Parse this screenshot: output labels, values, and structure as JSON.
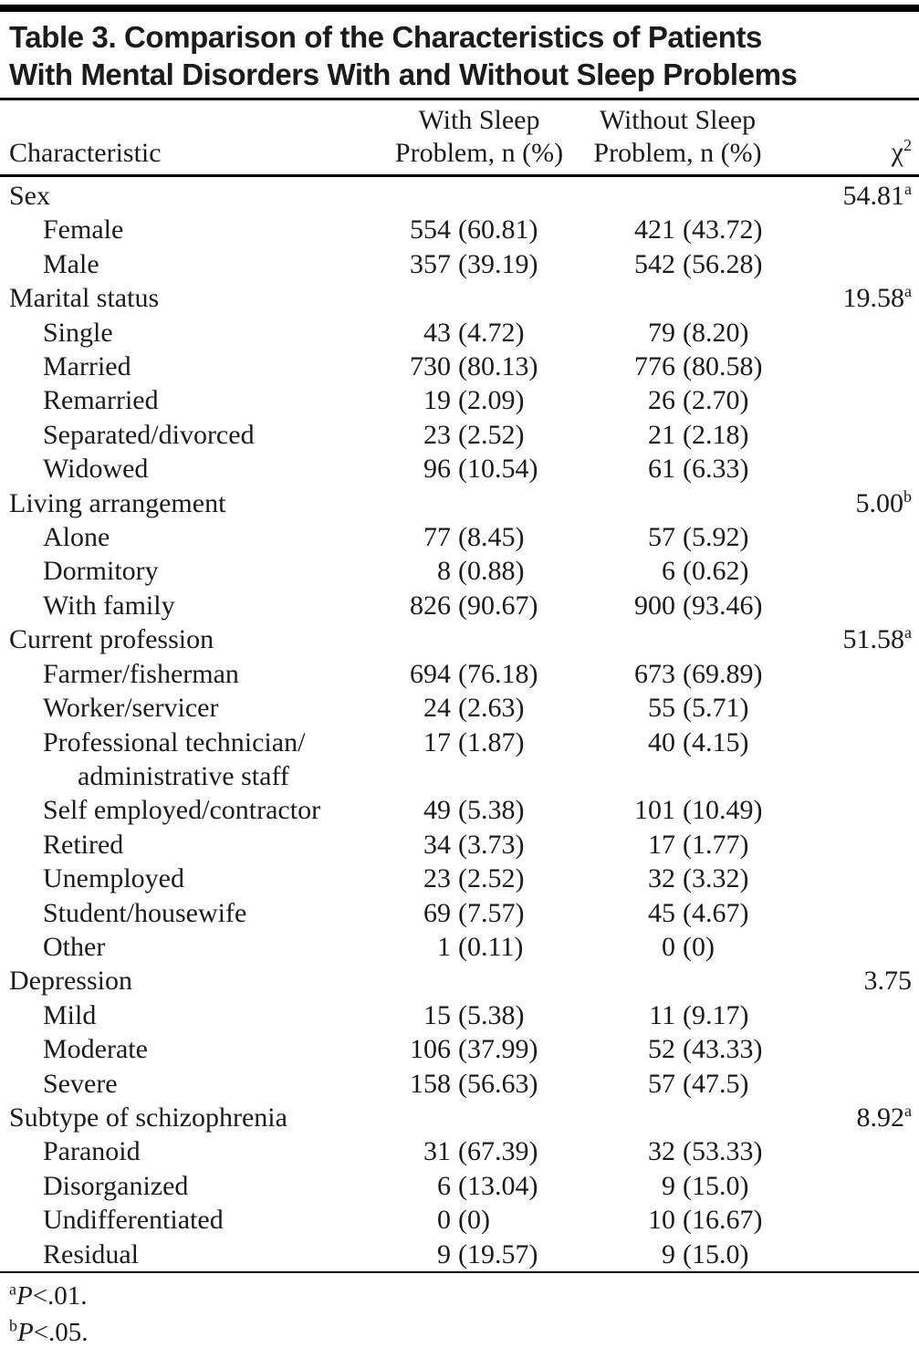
{
  "title": {
    "line1": "Table 3. Comparison of the Characteristics of Patients",
    "line2": "With Mental Disorders With and Without Sleep Problems"
  },
  "table": {
    "columns": {
      "characteristic": "Characteristic",
      "with_line1": "With Sleep",
      "with_line2": "Problem, n (%)",
      "without_line1": "Without Sleep",
      "without_line2": "Problem, n (%)",
      "chi_base": "χ",
      "chi_sup": "2"
    },
    "rows": [
      {
        "label": "Sex",
        "indent": 0,
        "wn": "",
        "wp": "",
        "on": "",
        "op": "",
        "chi": "54.81",
        "chi_sup": "a"
      },
      {
        "label": "Female",
        "indent": 1,
        "wn": "554",
        "wp": "(60.81)",
        "on": "421",
        "op": "(43.72)",
        "chi": "",
        "chi_sup": ""
      },
      {
        "label": "Male",
        "indent": 1,
        "wn": "357",
        "wp": "(39.19)",
        "on": "542",
        "op": "(56.28)",
        "chi": "",
        "chi_sup": ""
      },
      {
        "label": "Marital status",
        "indent": 0,
        "wn": "",
        "wp": "",
        "on": "",
        "op": "",
        "chi": "19.58",
        "chi_sup": "a"
      },
      {
        "label": "Single",
        "indent": 1,
        "wn": "43",
        "wp": "(4.72)",
        "on": "79",
        "op": "(8.20)",
        "chi": "",
        "chi_sup": ""
      },
      {
        "label": "Married",
        "indent": 1,
        "wn": "730",
        "wp": "(80.13)",
        "on": "776",
        "op": "(80.58)",
        "chi": "",
        "chi_sup": ""
      },
      {
        "label": "Remarried",
        "indent": 1,
        "wn": "19",
        "wp": "(2.09)",
        "on": "26",
        "op": "(2.70)",
        "chi": "",
        "chi_sup": ""
      },
      {
        "label": "Separated/divorced",
        "indent": 1,
        "wn": "23",
        "wp": "(2.52)",
        "on": "21",
        "op": "(2.18)",
        "chi": "",
        "chi_sup": ""
      },
      {
        "label": "Widowed",
        "indent": 1,
        "wn": "96",
        "wp": "(10.54)",
        "on": "61",
        "op": "(6.33)",
        "chi": "",
        "chi_sup": ""
      },
      {
        "label": "Living arrangement",
        "indent": 0,
        "wn": "",
        "wp": "",
        "on": "",
        "op": "",
        "chi": "5.00",
        "chi_sup": "b"
      },
      {
        "label": "Alone",
        "indent": 1,
        "wn": "77",
        "wp": "(8.45)",
        "on": "57",
        "op": "(5.92)",
        "chi": "",
        "chi_sup": ""
      },
      {
        "label": "Dormitory",
        "indent": 1,
        "wn": "8",
        "wp": "(0.88)",
        "on": "6",
        "op": "(0.62)",
        "chi": "",
        "chi_sup": ""
      },
      {
        "label": "With family",
        "indent": 1,
        "wn": "826",
        "wp": "(90.67)",
        "on": "900",
        "op": "(93.46)",
        "chi": "",
        "chi_sup": ""
      },
      {
        "label": "Current profession",
        "indent": 0,
        "wn": "",
        "wp": "",
        "on": "",
        "op": "",
        "chi": "51.58",
        "chi_sup": "a"
      },
      {
        "label": "Farmer/fisherman",
        "indent": 1,
        "wn": "694",
        "wp": "(76.18)",
        "on": "673",
        "op": "(69.89)",
        "chi": "",
        "chi_sup": ""
      },
      {
        "label": "Worker/servicer",
        "indent": 1,
        "wn": "24",
        "wp": "(2.63)",
        "on": "55",
        "op": "(5.71)",
        "chi": "",
        "chi_sup": ""
      },
      {
        "label": "Professional technician/",
        "label2": "administrative staff",
        "indent": 1,
        "wn": "17",
        "wp": "(1.87)",
        "on": "40",
        "op": "(4.15)",
        "chi": "",
        "chi_sup": ""
      },
      {
        "label": "Self employed/contractor",
        "indent": 1,
        "wn": "49",
        "wp": "(5.38)",
        "on": "101",
        "op": "(10.49)",
        "chi": "",
        "chi_sup": ""
      },
      {
        "label": "Retired",
        "indent": 1,
        "wn": "34",
        "wp": "(3.73)",
        "on": "17",
        "op": "(1.77)",
        "chi": "",
        "chi_sup": ""
      },
      {
        "label": "Unemployed",
        "indent": 1,
        "wn": "23",
        "wp": "(2.52)",
        "on": "32",
        "op": "(3.32)",
        "chi": "",
        "chi_sup": ""
      },
      {
        "label": "Student/housewife",
        "indent": 1,
        "wn": "69",
        "wp": "(7.57)",
        "on": "45",
        "op": "(4.67)",
        "chi": "",
        "chi_sup": ""
      },
      {
        "label": "Other",
        "indent": 1,
        "wn": "1",
        "wp": "(0.11)",
        "on": "0",
        "op": "(0)",
        "chi": "",
        "chi_sup": ""
      },
      {
        "label": "Depression",
        "indent": 0,
        "wn": "",
        "wp": "",
        "on": "",
        "op": "",
        "chi": "3.75",
        "chi_sup": ""
      },
      {
        "label": "Mild",
        "indent": 1,
        "wn": "15",
        "wp": "(5.38)",
        "on": "11",
        "op": "(9.17)",
        "chi": "",
        "chi_sup": ""
      },
      {
        "label": "Moderate",
        "indent": 1,
        "wn": "106",
        "wp": "(37.99)",
        "on": "52",
        "op": "(43.33)",
        "chi": "",
        "chi_sup": ""
      },
      {
        "label": "Severe",
        "indent": 1,
        "wn": "158",
        "wp": "(56.63)",
        "on": "57",
        "op": "(47.5)",
        "chi": "",
        "chi_sup": ""
      },
      {
        "label": "Subtype of schizophrenia",
        "indent": 0,
        "wn": "",
        "wp": "",
        "on": "",
        "op": "",
        "chi": "8.92",
        "chi_sup": "a"
      },
      {
        "label": "Paranoid",
        "indent": 1,
        "wn": "31",
        "wp": "(67.39)",
        "on": "32",
        "op": "(53.33)",
        "chi": "",
        "chi_sup": ""
      },
      {
        "label": "Disorganized",
        "indent": 1,
        "wn": "6",
        "wp": "(13.04)",
        "on": "9",
        "op": "(15.0)",
        "chi": "",
        "chi_sup": ""
      },
      {
        "label": "Undifferentiated",
        "indent": 1,
        "wn": "0",
        "wp": "(0)",
        "on": "10",
        "op": "(16.67)",
        "chi": "",
        "chi_sup": ""
      },
      {
        "label": "Residual",
        "indent": 1,
        "wn": "9",
        "wp": "(19.57)",
        "on": "9",
        "op": "(15.0)",
        "chi": "",
        "chi_sup": ""
      }
    ]
  },
  "footnotes": [
    {
      "sup": "a",
      "stat": "P",
      "text": "<.01."
    },
    {
      "sup": "b",
      "stat": "P",
      "text": "<.05."
    }
  ],
  "colors": {
    "text": "#1b1b1b",
    "rule": "#000000",
    "background": "#ffffff"
  }
}
